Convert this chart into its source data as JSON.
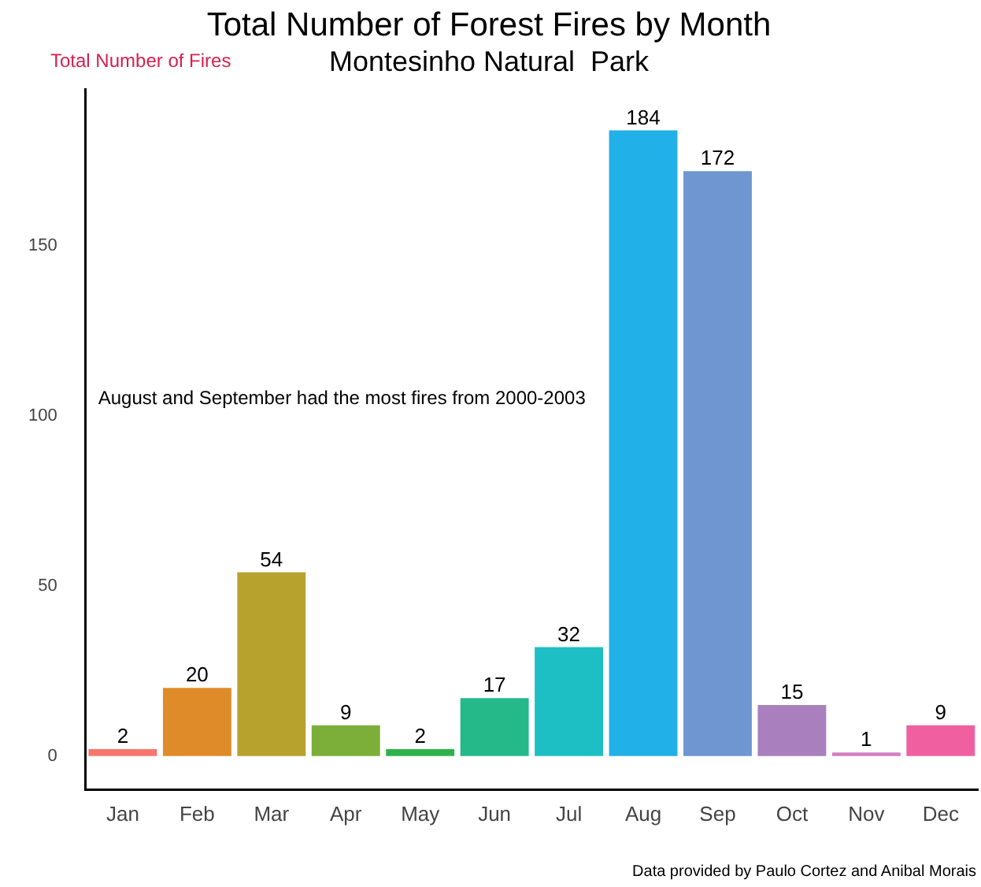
{
  "chart_data": {
    "type": "bar",
    "title": "Total Number of Forest Fires by Month",
    "subtitle": "Montesinho Natural  Park",
    "ylabel": "Total Number of Fires",
    "categories": [
      "Jan",
      "Feb",
      "Mar",
      "Apr",
      "May",
      "Jun",
      "Jul",
      "Aug",
      "Sep",
      "Oct",
      "Nov",
      "Dec"
    ],
    "values": [
      2,
      20,
      54,
      9,
      2,
      17,
      32,
      184,
      172,
      15,
      1,
      9
    ],
    "colors": [
      "#f8766d",
      "#e08b2a",
      "#b8a22e",
      "#7cae3a",
      "#2db24a",
      "#25b98a",
      "#1ebfc4",
      "#22b0e8",
      "#7096d1",
      "#a97fbd",
      "#d57ec4",
      "#f060a0"
    ],
    "ylim": [
      -10,
      196
    ],
    "yticks": [
      0,
      50,
      100,
      150
    ],
    "grid": false,
    "legend": false,
    "data_labels": true,
    "annotations": [
      "August and September had the most fires from 2000-2003",
      "Data provided by Paulo Cortez and Anibal Morais"
    ]
  }
}
